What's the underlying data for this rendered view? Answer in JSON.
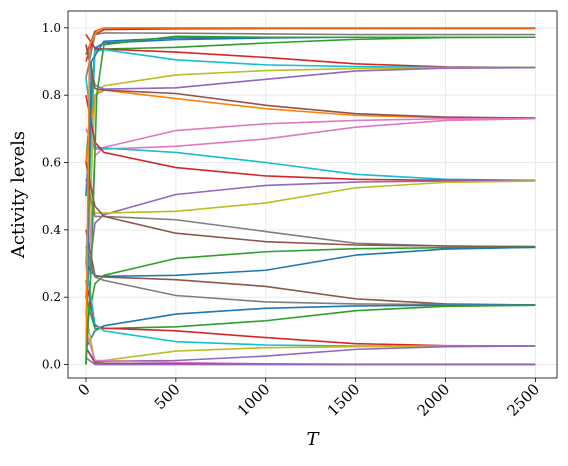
{
  "chart_data": {
    "type": "line",
    "title": "",
    "xlabel": "T",
    "ylabel": "Activity levels",
    "xlim": [
      -100,
      2620
    ],
    "ylim": [
      -0.04,
      1.05
    ],
    "x_ticks": [
      0,
      500,
      1000,
      1500,
      2000,
      2500
    ],
    "x_tick_labels": [
      "0",
      "500",
      "1000",
      "1500",
      "2000",
      "2500"
    ],
    "y_ticks": [
      0.0,
      0.2,
      0.4,
      0.6,
      0.8,
      1.0
    ],
    "y_tick_labels": [
      "0.0",
      "0.2",
      "0.4",
      "0.6",
      "0.8",
      "1.0"
    ],
    "grid": true,
    "legend": "none",
    "palette": [
      "#1f77b4",
      "#ff7f0e",
      "#2ca02c",
      "#d62728",
      "#9467bd",
      "#8c564b",
      "#e377c2",
      "#7f7f7f",
      "#bcbd22",
      "#17becf"
    ],
    "series": [
      {
        "color": "#8c564b",
        "x": [
          0,
          50,
          100,
          500,
          1000,
          1500,
          2000,
          2500
        ],
        "y": [
          0.92,
          0.99,
          1.0,
          1.0,
          1.0,
          1.0,
          1.0,
          1.0
        ]
      },
      {
        "color": "#d62728",
        "x": [
          0,
          50,
          100,
          500,
          1000,
          1500,
          2000,
          2500
        ],
        "y": [
          0.9,
          0.98,
          0.995,
          0.997,
          0.998,
          0.998,
          0.998,
          0.998
        ]
      },
      {
        "color": "#7f7f7f",
        "x": [
          0,
          50,
          100,
          500,
          1000,
          1500,
          2000,
          2500
        ],
        "y": [
          0.85,
          0.98,
          0.985,
          0.984,
          0.982,
          0.98,
          0.98,
          0.98
        ]
      },
      {
        "color": "#1f77b4",
        "x": [
          0,
          50,
          100,
          500,
          1000,
          1500,
          2000,
          2500
        ],
        "y": [
          0.5,
          0.94,
          0.955,
          0.965,
          0.97,
          0.972,
          0.972,
          0.972
        ]
      },
      {
        "color": "#2ca02c",
        "x": [
          0,
          50,
          100,
          500,
          1000,
          1500,
          2000,
          2500
        ],
        "y": [
          0.6,
          0.935,
          0.937,
          0.942,
          0.955,
          0.966,
          0.971,
          0.972
        ]
      },
      {
        "color": "#d62728",
        "x": [
          0,
          50,
          100,
          500,
          1000,
          1500,
          2000,
          2500
        ],
        "y": [
          0.98,
          0.94,
          0.937,
          0.928,
          0.912,
          0.893,
          0.884,
          0.882
        ]
      },
      {
        "color": "#17becf",
        "x": [
          0,
          50,
          100,
          500,
          1000,
          1500,
          2000,
          2500
        ],
        "y": [
          0.3,
          0.93,
          0.935,
          0.905,
          0.89,
          0.885,
          0.882,
          0.882
        ]
      },
      {
        "color": "#bcbd22",
        "x": [
          0,
          50,
          100,
          500,
          1000,
          1500,
          2000,
          2500
        ],
        "y": [
          0.2,
          0.8,
          0.828,
          0.86,
          0.873,
          0.879,
          0.881,
          0.882
        ]
      },
      {
        "color": "#9467bd",
        "x": [
          0,
          50,
          100,
          500,
          1000,
          1500,
          2000,
          2500
        ],
        "y": [
          0.95,
          0.83,
          0.818,
          0.822,
          0.847,
          0.872,
          0.88,
          0.882
        ]
      },
      {
        "color": "#ff7f0e",
        "x": [
          0,
          50,
          100,
          500,
          1000,
          1500,
          2000,
          2500
        ],
        "y": [
          0.6,
          0.8,
          0.815,
          0.79,
          0.76,
          0.74,
          0.733,
          0.732
        ]
      },
      {
        "color": "#8c564b",
        "x": [
          0,
          50,
          100,
          500,
          1000,
          1500,
          2000,
          2500
        ],
        "y": [
          0.95,
          0.82,
          0.815,
          0.805,
          0.77,
          0.745,
          0.735,
          0.732
        ]
      },
      {
        "color": "#e377c2",
        "x": [
          0,
          50,
          100,
          500,
          1000,
          1500,
          2000,
          2500
        ],
        "y": [
          0.15,
          0.62,
          0.645,
          0.695,
          0.715,
          0.725,
          0.73,
          0.73
        ]
      },
      {
        "color": "#e377c2",
        "x": [
          0,
          50,
          100,
          500,
          1000,
          1500,
          2000,
          2500
        ],
        "y": [
          0.7,
          0.64,
          0.64,
          0.648,
          0.67,
          0.705,
          0.725,
          0.73
        ]
      },
      {
        "color": "#17becf",
        "x": [
          0,
          50,
          100,
          500,
          1000,
          1500,
          2000,
          2500
        ],
        "y": [
          0.85,
          0.645,
          0.643,
          0.63,
          0.6,
          0.565,
          0.55,
          0.547
        ]
      },
      {
        "color": "#d62728",
        "x": [
          0,
          50,
          100,
          500,
          1000,
          1500,
          2000,
          2500
        ],
        "y": [
          0.8,
          0.66,
          0.63,
          0.585,
          0.56,
          0.55,
          0.547,
          0.546
        ]
      },
      {
        "color": "#9467bd",
        "x": [
          0,
          50,
          100,
          500,
          1000,
          1500,
          2000,
          2500
        ],
        "y": [
          0.2,
          0.42,
          0.445,
          0.505,
          0.532,
          0.542,
          0.545,
          0.546
        ]
      },
      {
        "color": "#bcbd22",
        "x": [
          0,
          50,
          100,
          500,
          1000,
          1500,
          2000,
          2500
        ],
        "y": [
          0.6,
          0.45,
          0.45,
          0.455,
          0.48,
          0.525,
          0.541,
          0.545
        ]
      },
      {
        "color": "#7f7f7f",
        "x": [
          0,
          50,
          100,
          500,
          1000,
          1500,
          2000,
          2500
        ],
        "y": [
          0.55,
          0.44,
          0.44,
          0.43,
          0.395,
          0.36,
          0.352,
          0.35
        ]
      },
      {
        "color": "#8c564b",
        "x": [
          0,
          50,
          100,
          500,
          1000,
          1500,
          2000,
          2500
        ],
        "y": [
          0.6,
          0.47,
          0.44,
          0.39,
          0.365,
          0.355,
          0.352,
          0.35
        ]
      },
      {
        "color": "#2ca02c",
        "x": [
          0,
          50,
          100,
          500,
          1000,
          1500,
          2000,
          2500
        ],
        "y": [
          0.1,
          0.24,
          0.265,
          0.315,
          0.335,
          0.344,
          0.347,
          0.348
        ]
      },
      {
        "color": "#1f77b4",
        "x": [
          0,
          50,
          100,
          500,
          1000,
          1500,
          2000,
          2500
        ],
        "y": [
          0.3,
          0.262,
          0.262,
          0.265,
          0.28,
          0.325,
          0.343,
          0.348
        ]
      },
      {
        "color": "#8c564b",
        "x": [
          0,
          50,
          100,
          500,
          1000,
          1500,
          2000,
          2500
        ],
        "y": [
          0.4,
          0.265,
          0.26,
          0.252,
          0.232,
          0.195,
          0.18,
          0.177
        ]
      },
      {
        "color": "#7f7f7f",
        "x": [
          0,
          50,
          100,
          500,
          1000,
          1500,
          2000,
          2500
        ],
        "y": [
          0.35,
          0.26,
          0.25,
          0.205,
          0.186,
          0.18,
          0.178,
          0.177
        ]
      },
      {
        "color": "#1f77b4",
        "x": [
          0,
          50,
          100,
          500,
          1000,
          1500,
          2000,
          2500
        ],
        "y": [
          0.05,
          0.1,
          0.115,
          0.15,
          0.167,
          0.174,
          0.176,
          0.177
        ]
      },
      {
        "color": "#2ca02c",
        "x": [
          0,
          50,
          100,
          500,
          1000,
          1500,
          2000,
          2500
        ],
        "y": [
          0.2,
          0.107,
          0.107,
          0.112,
          0.13,
          0.16,
          0.173,
          0.176
        ]
      },
      {
        "color": "#d62728",
        "x": [
          0,
          50,
          100,
          500,
          1000,
          1500,
          2000,
          2500
        ],
        "y": [
          0.25,
          0.115,
          0.108,
          0.1,
          0.08,
          0.062,
          0.056,
          0.055
        ]
      },
      {
        "color": "#17becf",
        "x": [
          0,
          50,
          100,
          500,
          1000,
          1500,
          2000,
          2500
        ],
        "y": [
          0.3,
          0.12,
          0.1,
          0.068,
          0.058,
          0.055,
          0.055,
          0.055
        ]
      },
      {
        "color": "#bcbd22",
        "x": [
          0,
          50,
          100,
          500,
          1000,
          1500,
          2000,
          2500
        ],
        "y": [
          0.15,
          0.005,
          0.012,
          0.04,
          0.05,
          0.053,
          0.054,
          0.055
        ]
      },
      {
        "color": "#9467bd",
        "x": [
          0,
          50,
          100,
          500,
          1000,
          1500,
          2000,
          2500
        ],
        "y": [
          0.05,
          0.01,
          0.01,
          0.012,
          0.025,
          0.045,
          0.053,
          0.055
        ]
      },
      {
        "color": "#e377c2",
        "x": [
          0,
          50,
          100,
          500,
          1000,
          1500,
          2000,
          2500
        ],
        "y": [
          0.1,
          0.012,
          0.012,
          0.006,
          0.002,
          0.001,
          0.001,
          0.001
        ]
      },
      {
        "color": "#8c564b",
        "x": [
          0,
          50,
          100,
          500,
          1000,
          1500,
          2000,
          2500
        ],
        "y": [
          0.05,
          0.005,
          0.004,
          0.002,
          0.001,
          0.0,
          0.0,
          0.0
        ]
      },
      {
        "color": "#9467bd",
        "x": [
          0,
          50,
          100,
          500,
          1000,
          1500,
          2000,
          2500
        ],
        "y": [
          0.02,
          0.0,
          0.0,
          0.0,
          0.0,
          0.0,
          0.0,
          0.0
        ]
      },
      {
        "color": "#1f77b4",
        "x": [
          0,
          30,
          100,
          500,
          1000,
          1500,
          2000,
          2500
        ],
        "y": [
          0.0,
          0.9,
          0.96,
          0.97,
          0.972,
          0.972,
          0.972,
          0.972
        ]
      },
      {
        "color": "#ff7f0e",
        "x": [
          0,
          20,
          60,
          100,
          500,
          1000,
          1500,
          2000,
          2500
        ],
        "y": [
          0.0,
          0.95,
          0.99,
          1.0,
          1.0,
          1.0,
          1.0,
          1.0,
          1.0
        ]
      },
      {
        "color": "#2ca02c",
        "x": [
          0,
          30,
          60,
          100,
          500,
          1000,
          1500,
          2000,
          2500
        ],
        "y": [
          0.0,
          0.3,
          0.8,
          0.95,
          0.975,
          0.972,
          0.972,
          0.972,
          0.972
        ]
      }
    ]
  }
}
